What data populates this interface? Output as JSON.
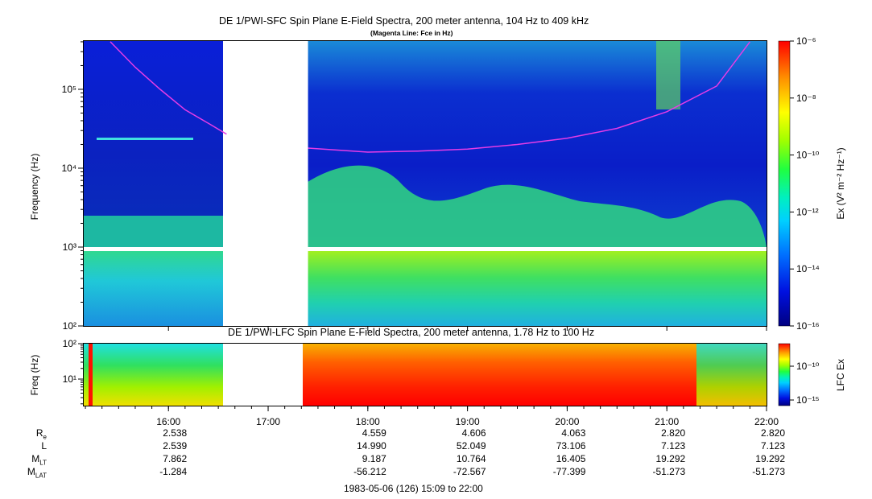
{
  "chart_data": [
    {
      "type": "heatmap",
      "title": "DE 1/PWI-SFC  Spin Plane E-Field Spectra, 200 meter antenna, 104 Hz to 409 kHz",
      "subtitle": "(Magenta Line: Fce in Hz)",
      "ylabel": "Frequency (Hz)",
      "yscale": "log",
      "ylim": [
        100,
        409000
      ],
      "yticks": [
        "10²",
        "10³",
        "10⁴",
        "10⁵"
      ],
      "xlim": [
        "15:09",
        "22:00"
      ],
      "data_gap": [
        "16:38",
        "17:24"
      ],
      "colorbar": {
        "label": "Ex (V² m⁻² Hz⁻¹)",
        "scale": "log",
        "ticks": [
          "10⁻⁶",
          "10⁻⁸",
          "10⁻¹⁰",
          "10⁻¹²",
          "10⁻¹⁴",
          "10⁻¹⁶"
        ],
        "range": [
          1e-16,
          1e-06
        ]
      },
      "fce_line": {
        "name": "Fce",
        "color": "#e63ce6",
        "segments": [
          {
            "t": [
              "15:25",
              "15:40",
              "15:55",
              "16:10",
              "16:25",
              "16:35"
            ],
            "f": [
              400000,
              190000,
              100000,
              55000,
              36000,
              27000
            ]
          },
          {
            "t": [
              "17:24",
              "18:00",
              "18:30",
              "19:00",
              "19:30",
              "20:00",
              "20:30",
              "21:00",
              "21:30",
              "21:50"
            ],
            "f": [
              18000,
              16000,
              16500,
              17500,
              20000,
              24000,
              32000,
              52000,
              110000,
              400000
            ]
          }
        ]
      }
    },
    {
      "type": "heatmap",
      "title": "DE 1/PWI-LFC  Spin Plane E-Field Spectra, 200 meter antenna, 1.78 Hz to 100 Hz",
      "ylabel": "Freq (Hz)",
      "yscale": "log",
      "ylim": [
        1.78,
        100
      ],
      "yticks": [
        "10¹",
        "10²"
      ],
      "xlim": [
        "15:09",
        "22:00"
      ],
      "data_gap": [
        "16:38",
        "17:24"
      ],
      "colorbar": {
        "label": "LFC Ex",
        "scale": "log",
        "ticks": [
          "10⁻¹⁰",
          "10⁻¹⁵"
        ]
      }
    }
  ],
  "time_axis": {
    "ticks": [
      "16:00",
      "17:00",
      "18:00",
      "19:00",
      "20:00",
      "21:00",
      "22:00"
    ]
  },
  "ephemeris": {
    "rows": [
      {
        "label": "R",
        "sub": "e",
        "values": [
          "2.538",
          "",
          "4.559",
          "4.606",
          "4.063",
          "2.820",
          "2.820"
        ]
      },
      {
        "label": "L",
        "sub": "",
        "values": [
          "2.539",
          "",
          "14.990",
          "52.049",
          "73.106",
          "7.123",
          "7.123"
        ]
      },
      {
        "label": "M",
        "sub": "LT",
        "values": [
          "7.862",
          "",
          "9.187",
          "10.764",
          "16.405",
          "19.292",
          "19.292"
        ]
      },
      {
        "label": "M",
        "sub": "LAT",
        "values": [
          "-1.284",
          "",
          "-56.212",
          "-72.567",
          "-77.399",
          "-51.273",
          "-51.273"
        ]
      }
    ]
  },
  "footer": "1983-05-06 (126) 15:09 to 22:00"
}
